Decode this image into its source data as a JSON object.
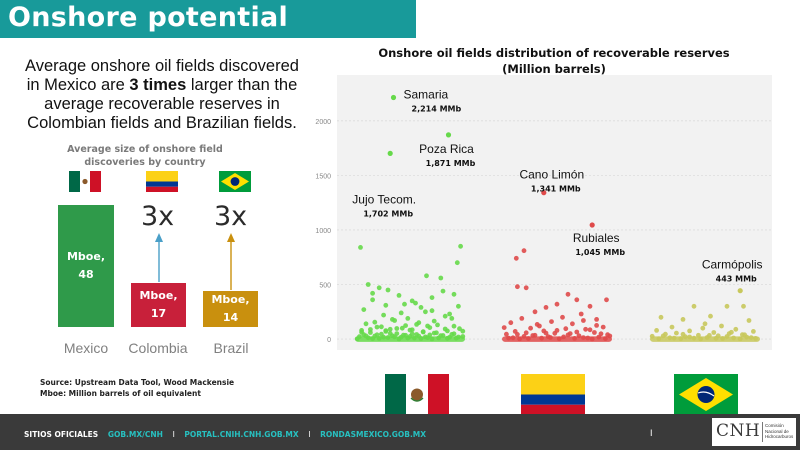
{
  "header": {
    "title": "Onshore potential"
  },
  "intro": {
    "part1": "Average onshore oil fields discovered in Mexico are ",
    "emphasis": "3 times",
    "part2": " larger than the average recoverable reserves in Colombian fields and Brazilian fields."
  },
  "colors": {
    "mexico": "#2f9a4a",
    "colombia": "#c8203a",
    "brazil": "#c9900e",
    "mexico_points": "#66d94a",
    "colombia_points": "#df4a4a",
    "brazil_points": "#c8c85c",
    "banner": "#189a9a",
    "plot_bg": "#f2f2f2"
  },
  "chart_data": [
    {
      "type": "bar",
      "title": "Average size of onshore field discoveries by country",
      "categories": [
        "Mexico",
        "Colombia",
        "Brazil"
      ],
      "values": [
        48,
        17,
        14
      ],
      "bar_labels": [
        "Mboe,\n48",
        "Mboe,\n17",
        "Mboe,\n14"
      ],
      "annotations": [
        "3x",
        "3x"
      ]
    },
    {
      "type": "scatter",
      "title": "Onshore oil fields distribution of recoverable reserves\n(Million barrels)",
      "ylim": [
        -100,
        2420
      ],
      "yticks": [
        0,
        500,
        1000,
        1500,
        2000
      ],
      "grid": true,
      "groups": [
        "Mexico",
        "Colombia",
        "Brazil"
      ],
      "highlighted": [
        {
          "group": "Mexico",
          "name": "Samaria",
          "value_label": "2,214 MMb",
          "y": 2214,
          "jitter": 0.35
        },
        {
          "group": "Mexico",
          "name": "Poza Rica",
          "value_label": "1,871 MMb",
          "y": 1871,
          "jitter": 0.85
        },
        {
          "group": "Mexico",
          "name": "Jujo Tecom.",
          "value_label": "1,702 MMb",
          "y": 1702,
          "jitter": 0.32
        },
        {
          "group": "Colombia",
          "name": "Cano Limón",
          "value_label": "1,341 MMb",
          "y": 1341,
          "jitter": 0.38
        },
        {
          "group": "Colombia",
          "name": "Rubiales",
          "value_label": "1,045 MMb",
          "y": 1045,
          "jitter": 0.82
        },
        {
          "group": "Brazil",
          "name": "Carmópolis",
          "value_label": "443 MMb",
          "y": 443,
          "jitter": 0.82
        }
      ],
      "points": {
        "Mexico": [
          [
            0.05,
            840
          ],
          [
            0.96,
            850
          ],
          [
            0.12,
            500
          ],
          [
            0.93,
            700
          ],
          [
            0.78,
            560
          ],
          [
            0.65,
            580
          ],
          [
            0.55,
            330
          ],
          [
            0.45,
            320
          ],
          [
            0.9,
            410
          ],
          [
            0.3,
            450
          ],
          [
            0.22,
            470
          ],
          [
            0.4,
            400
          ],
          [
            0.6,
            290
          ],
          [
            0.16,
            360
          ],
          [
            0.7,
            260
          ],
          [
            0.82,
            210
          ],
          [
            0.26,
            220
          ],
          [
            0.48,
            190
          ],
          [
            0.36,
            170
          ],
          [
            0.88,
            190
          ],
          [
            0.58,
            150
          ],
          [
            0.1,
            140
          ],
          [
            0.75,
            130
          ],
          [
            0.66,
            120
          ],
          [
            0.2,
            110
          ],
          [
            0.43,
            100
          ],
          [
            0.32,
            90
          ],
          [
            0.52,
            85
          ],
          [
            0.95,
            95
          ],
          [
            0.06,
            80
          ],
          [
            0.84,
            75
          ],
          [
            0.28,
            70
          ],
          [
            0.62,
            65
          ],
          [
            0.14,
            60
          ],
          [
            0.72,
            55
          ],
          [
            0.38,
            50
          ],
          [
            0.9,
            48
          ],
          [
            0.24,
            45
          ],
          [
            0.56,
            42
          ],
          [
            0.08,
            40
          ],
          [
            0.68,
            38
          ],
          [
            0.46,
            35
          ],
          [
            0.8,
            33
          ],
          [
            0.34,
            30
          ],
          [
            0.18,
            28
          ],
          [
            0.5,
            25
          ],
          [
            0.98,
            24
          ],
          [
            0.04,
            22
          ],
          [
            0.64,
            20
          ],
          [
            0.42,
            18
          ],
          [
            0.86,
            16
          ],
          [
            0.3,
            15
          ],
          [
            0.12,
            12
          ],
          [
            0.76,
            11
          ],
          [
            0.54,
            10
          ],
          [
            0.92,
            8
          ],
          [
            0.22,
            6
          ],
          [
            0.6,
            5
          ],
          [
            0.02,
            3
          ],
          [
            0.7,
            2
          ],
          [
            0.4,
            1
          ],
          [
            0.16,
            4
          ],
          [
            0.84,
            7
          ],
          [
            0.48,
            9
          ],
          [
            0.66,
            13
          ],
          [
            0.26,
            17
          ],
          [
            0.94,
            19
          ],
          [
            0.36,
            21
          ],
          [
            0.58,
            27
          ],
          [
            0.1,
            29
          ],
          [
            0.78,
            32
          ],
          [
            0.44,
            36
          ],
          [
            0.2,
            39
          ],
          [
            0.88,
            43
          ],
          [
            0.52,
            47
          ],
          [
            0.32,
            52
          ],
          [
            0.74,
            58
          ],
          [
            0.06,
            63
          ],
          [
            0.62,
            68
          ],
          [
            0.98,
            72
          ],
          [
            0.28,
            78
          ],
          [
            0.5,
            82
          ],
          [
            0.14,
            88
          ],
          [
            0.82,
            92
          ],
          [
            0.38,
            97
          ],
          [
            0.68,
            105
          ],
          [
            0.24,
            113
          ],
          [
            0.9,
            118
          ],
          [
            0.46,
            124
          ],
          [
            0.56,
            135
          ],
          [
            0.18,
            155
          ],
          [
            0.72,
            165
          ],
          [
            0.34,
            180
          ],
          [
            0.86,
            230
          ],
          [
            0.42,
            240
          ],
          [
            0.64,
            250
          ],
          [
            0.08,
            270
          ],
          [
            0.94,
            300
          ],
          [
            0.28,
            310
          ],
          [
            0.52,
            350
          ],
          [
            0.7,
            380
          ],
          [
            0.16,
            420
          ],
          [
            0.8,
            440
          ]
        ],
        "Colombia": [
          [
            0.13,
            740
          ],
          [
            0.2,
            810
          ],
          [
            0.14,
            480
          ],
          [
            0.22,
            470
          ],
          [
            0.6,
            410
          ],
          [
            0.68,
            360
          ],
          [
            0.5,
            320
          ],
          [
            0.8,
            300
          ],
          [
            0.4,
            290
          ],
          [
            0.95,
            360
          ],
          [
            0.3,
            250
          ],
          [
            0.72,
            230
          ],
          [
            0.55,
            200
          ],
          [
            0.18,
            190
          ],
          [
            0.86,
            180
          ],
          [
            0.45,
            160
          ],
          [
            0.08,
            150
          ],
          [
            0.64,
            140
          ],
          [
            0.34,
            120
          ],
          [
            0.92,
            110
          ],
          [
            0.26,
            100
          ],
          [
            0.76,
            90
          ],
          [
            0.5,
            80
          ],
          [
            0.12,
            70
          ],
          [
            0.84,
            60
          ],
          [
            0.4,
            55
          ],
          [
            0.62,
            50
          ],
          [
            0.04,
            45
          ],
          [
            0.96,
            40
          ],
          [
            0.3,
            35
          ],
          [
            0.7,
            30
          ],
          [
            0.2,
            25
          ],
          [
            0.56,
            20
          ],
          [
            0.88,
            18
          ],
          [
            0.44,
            15
          ],
          [
            0.1,
            12
          ],
          [
            0.78,
            10
          ],
          [
            0.36,
            8
          ],
          [
            0.66,
            6
          ],
          [
            0.24,
            5
          ],
          [
            0.94,
            4
          ],
          [
            0.52,
            3
          ],
          [
            0.16,
            2
          ],
          [
            0.82,
            1
          ],
          [
            0.06,
            9
          ],
          [
            0.74,
            14
          ],
          [
            0.42,
            22
          ],
          [
            0.98,
            28
          ],
          [
            0.28,
            33
          ],
          [
            0.6,
            38
          ],
          [
            0.14,
            43
          ],
          [
            0.9,
            48
          ],
          [
            0.48,
            53
          ],
          [
            0.22,
            58
          ],
          [
            0.68,
            65
          ],
          [
            0.38,
            75
          ],
          [
            0.8,
            85
          ],
          [
            0.58,
            95
          ],
          [
            0.02,
            105
          ],
          [
            0.86,
            125
          ],
          [
            0.32,
            135
          ],
          [
            0.74,
            170
          ]
        ],
        "Brazil": [
          [
            0.4,
            300
          ],
          [
            0.7,
            300
          ],
          [
            0.85,
            300
          ],
          [
            0.1,
            200
          ],
          [
            0.55,
            210
          ],
          [
            0.3,
            180
          ],
          [
            0.9,
            170
          ],
          [
            0.65,
            120
          ],
          [
            0.2,
            110
          ],
          [
            0.48,
            100
          ],
          [
            0.78,
            90
          ],
          [
            0.06,
            80
          ],
          [
            0.36,
            75
          ],
          [
            0.94,
            70
          ],
          [
            0.58,
            60
          ],
          [
            0.24,
            55
          ],
          [
            0.72,
            50
          ],
          [
            0.14,
            45
          ],
          [
            0.84,
            40
          ],
          [
            0.44,
            35
          ],
          [
            0.62,
            30
          ],
          [
            0.02,
            26
          ],
          [
            0.32,
            22
          ],
          [
            0.88,
            18
          ],
          [
            0.52,
            15
          ],
          [
            0.18,
            12
          ],
          [
            0.76,
            10
          ],
          [
            0.4,
            8
          ],
          [
            0.96,
            6
          ],
          [
            0.66,
            5
          ],
          [
            0.28,
            4
          ],
          [
            0.08,
            3
          ],
          [
            0.82,
            2
          ],
          [
            0.46,
            1
          ],
          [
            0.6,
            7
          ],
          [
            0.22,
            9
          ],
          [
            0.92,
            14
          ],
          [
            0.36,
            19
          ],
          [
            0.7,
            24
          ],
          [
            0.12,
            29
          ],
          [
            0.54,
            34
          ],
          [
            0.86,
            39
          ],
          [
            0.3,
            44
          ],
          [
            0.74,
            62
          ],
          [
            0.5,
            140
          ]
        ]
      }
    }
  ],
  "source": {
    "line1": "Source: Upstream Data Tool, Wood Mackensie",
    "line2": "Mboe: Million barrels of oil equivalent"
  },
  "footer": {
    "label": "SITIOS OFICIALES",
    "links": [
      "GOB.MX/CNH",
      "PORTAL.CNIH.CNH.GOB.MX",
      "RONDASMEXICO.GOB.MX"
    ],
    "separator": "I",
    "pager": "I"
  },
  "logo": {
    "mark": "CNH",
    "subtitle": "Comisión Nacional de Hidrocarburos"
  }
}
